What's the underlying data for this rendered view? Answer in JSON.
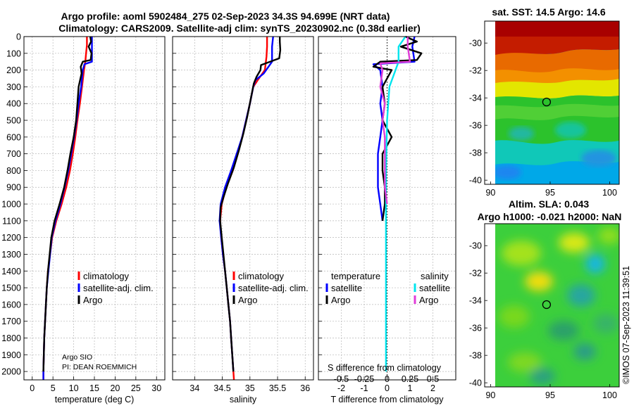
{
  "titles": {
    "line1": "Argo profile: aoml 5902484_275 02-Sep-2023 34.3S 94.699E (NRT data)",
    "line2": "Climatology: CARS2009. Satellite-adj clim: synTS_20230902.nc (0.38d earlier)"
  },
  "credit": {
    "institution": "Argo SIO",
    "pi": "PI: DEAN ROEMMICH",
    "stamp": "©IMOS 07-Sep-2023 11:39:51"
  },
  "colors": {
    "climatology": "#ff0000",
    "satellite": "#0000ff",
    "argo": "#000000",
    "temp_satellite": "#0000ff",
    "sal_satellite": "#00e5ee",
    "sal_argo": "#e23cd8",
    "grid": "#b8b8b8"
  },
  "legends": {
    "temperature": [
      "climatology",
      "satellite-adj. clim.",
      "Argo"
    ],
    "salinity": [
      "climatology",
      "satellite-adj. clim.",
      "Argo"
    ],
    "difference": {
      "temp_header": "temperature",
      "sal_header": "salinity",
      "temp_items": [
        "satellite",
        "Argo"
      ],
      "sal_items": [
        "satellite",
        "Argo"
      ]
    }
  },
  "chart_data": [
    {
      "id": "temperature-profile",
      "type": "line",
      "xlabel": "temperature (deg C)",
      "ylabel": "",
      "xlim": [
        -2,
        32
      ],
      "ylim": [
        2050,
        0
      ],
      "xticks": [
        0,
        5,
        10,
        15,
        20,
        25,
        30
      ],
      "yticks": [
        0,
        100,
        200,
        300,
        400,
        500,
        600,
        700,
        800,
        900,
        1000,
        1100,
        1200,
        1300,
        1400,
        1500,
        1600,
        1700,
        1800,
        1900,
        2000
      ],
      "series": [
        {
          "name": "climatology",
          "color": "#ff0000",
          "width": 2.4,
          "points": [
            [
              13.2,
              0
            ],
            [
              13.2,
              50
            ],
            [
              13.0,
              100
            ],
            [
              12.8,
              150
            ],
            [
              12.5,
              200
            ],
            [
              12.0,
              300
            ],
            [
              11.5,
              400
            ],
            [
              10.9,
              500
            ],
            [
              10.4,
              600
            ],
            [
              9.8,
              700
            ],
            [
              9.1,
              800
            ],
            [
              8.2,
              900
            ],
            [
              7.1,
              1000
            ],
            [
              5.8,
              1100
            ],
            [
              4.8,
              1200
            ],
            [
              4.3,
              1300
            ],
            [
              3.8,
              1400
            ],
            [
              3.5,
              1500
            ],
            [
              3.3,
              1600
            ],
            [
              3.1,
              1700
            ],
            [
              2.9,
              1800
            ],
            [
              2.8,
              1900
            ],
            [
              2.7,
              2000
            ],
            [
              2.7,
              2050
            ]
          ]
        },
        {
          "name": "satellite-adj. clim.",
          "color": "#0000ff",
          "width": 2.4,
          "points": [
            [
              14.4,
              0
            ],
            [
              14.4,
              60
            ],
            [
              14.4,
              150
            ],
            [
              12.6,
              165
            ],
            [
              12.2,
              200
            ],
            [
              11.8,
              300
            ],
            [
              11.2,
              400
            ],
            [
              10.7,
              500
            ],
            [
              10.1,
              600
            ],
            [
              9.4,
              700
            ],
            [
              8.7,
              800
            ],
            [
              7.8,
              900
            ],
            [
              6.8,
              1000
            ],
            [
              5.6,
              1100
            ],
            [
              4.7,
              1200
            ],
            [
              4.3,
              1300
            ],
            [
              3.9,
              1400
            ],
            [
              3.5,
              1500
            ],
            [
              3.3,
              1600
            ],
            [
              3.1,
              1700
            ],
            [
              2.9,
              1800
            ],
            [
              2.8,
              1900
            ],
            [
              2.7,
              2000
            ],
            [
              2.7,
              2050
            ]
          ]
        },
        {
          "name": "Argo",
          "color": "#000000",
          "width": 2.4,
          "points": [
            [
              14.0,
              0
            ],
            [
              14.2,
              30
            ],
            [
              13.6,
              60
            ],
            [
              14.3,
              100
            ],
            [
              14.1,
              140
            ],
            [
              12.2,
              150
            ],
            [
              11.7,
              180
            ],
            [
              11.9,
              220
            ],
            [
              11.2,
              300
            ],
            [
              10.9,
              400
            ],
            [
              10.6,
              500
            ],
            [
              10.0,
              600
            ],
            [
              9.2,
              700
            ],
            [
              8.5,
              800
            ],
            [
              7.7,
              900
            ],
            [
              6.6,
              1000
            ],
            [
              5.4,
              1100
            ],
            [
              4.6,
              1200
            ],
            [
              4.2,
              1300
            ],
            [
              3.8,
              1400
            ],
            [
              3.5,
              1500
            ],
            [
              3.3,
              1600
            ],
            [
              3.1,
              1700
            ],
            [
              2.9,
              1800
            ],
            [
              2.8,
              1900
            ],
            [
              2.7,
              2000
            ]
          ]
        }
      ],
      "legend_position": "lower-center"
    },
    {
      "id": "salinity-profile",
      "type": "line",
      "xlabel": "salinity",
      "ylabel": "",
      "xlim": [
        33.6,
        36.15
      ],
      "ylim": [
        2050,
        0
      ],
      "xticks": [
        34,
        34.5,
        35,
        35.5,
        36
      ],
      "yticks": [
        0,
        100,
        200,
        300,
        400,
        500,
        600,
        700,
        800,
        900,
        1000,
        1100,
        1200,
        1300,
        1400,
        1500,
        1600,
        1700,
        1800,
        1900,
        2000
      ],
      "series": [
        {
          "name": "climatology",
          "color": "#ff0000",
          "width": 2.4,
          "points": [
            [
              35.31,
              0
            ],
            [
              35.31,
              60
            ],
            [
              35.3,
              120
            ],
            [
              35.27,
              200
            ],
            [
              35.14,
              260
            ],
            [
              35.06,
              300
            ],
            [
              35.0,
              400
            ],
            [
              34.93,
              500
            ],
            [
              34.86,
              600
            ],
            [
              34.78,
              700
            ],
            [
              34.69,
              800
            ],
            [
              34.57,
              900
            ],
            [
              34.49,
              1000
            ],
            [
              34.46,
              1100
            ],
            [
              34.48,
              1200
            ],
            [
              34.51,
              1300
            ],
            [
              34.55,
              1400
            ],
            [
              34.58,
              1500
            ],
            [
              34.61,
              1600
            ],
            [
              34.64,
              1700
            ],
            [
              34.66,
              1800
            ],
            [
              34.68,
              1900
            ],
            [
              34.7,
              2000
            ],
            [
              34.71,
              2050
            ]
          ]
        },
        {
          "name": "satellite-adj. clim.",
          "color": "#0000ff",
          "width": 2.4,
          "points": [
            [
              35.42,
              0
            ],
            [
              35.4,
              60
            ],
            [
              35.4,
              150
            ],
            [
              35.25,
              220
            ],
            [
              35.1,
              260
            ],
            [
              35.06,
              300
            ],
            [
              35.0,
              400
            ],
            [
              34.93,
              500
            ],
            [
              34.86,
              600
            ],
            [
              34.76,
              700
            ],
            [
              34.66,
              800
            ],
            [
              34.55,
              900
            ],
            [
              34.47,
              1000
            ],
            [
              34.45,
              1100
            ],
            [
              34.48,
              1200
            ],
            [
              34.51,
              1300
            ],
            [
              34.55,
              1400
            ],
            [
              34.58,
              1500
            ],
            [
              34.61,
              1600
            ],
            [
              34.64,
              1700
            ],
            [
              34.66,
              1800
            ],
            [
              34.68,
              1900
            ],
            [
              34.7,
              2000
            ]
          ]
        },
        {
          "name": "Argo",
          "color": "#000000",
          "width": 2.4,
          "points": [
            [
              35.54,
              0
            ],
            [
              35.54,
              30
            ],
            [
              35.55,
              80
            ],
            [
              35.53,
              130
            ],
            [
              35.2,
              170
            ],
            [
              35.19,
              200
            ],
            [
              35.12,
              240
            ],
            [
              35.07,
              280
            ],
            [
              35.01,
              380
            ],
            [
              34.95,
              480
            ],
            [
              34.88,
              580
            ],
            [
              34.8,
              680
            ],
            [
              34.71,
              780
            ],
            [
              34.6,
              880
            ],
            [
              34.52,
              960
            ],
            [
              34.47,
              1020
            ],
            [
              34.46,
              1100
            ],
            [
              34.49,
              1200
            ],
            [
              34.52,
              1300
            ],
            [
              34.55,
              1400
            ],
            [
              34.58,
              1500
            ],
            [
              34.61,
              1600
            ],
            [
              34.64,
              1700
            ],
            [
              34.66,
              1800
            ],
            [
              34.68,
              1900
            ],
            [
              34.7,
              2000
            ]
          ]
        }
      ],
      "legend_position": "lower-center"
    },
    {
      "id": "difference-profile",
      "type": "line",
      "xlabel": "T difference from climatology",
      "xlabel_top": "S difference from climatology",
      "xlim": [
        -3.0,
        3.0
      ],
      "ylim": [
        2050,
        0
      ],
      "xticks": [
        -2,
        -1,
        0,
        1,
        2
      ],
      "top_ticks": [
        {
          "label": "-0.5",
          "value": -2.0
        },
        {
          "label": "-0.25",
          "value": -1.0
        },
        {
          "label": "0",
          "value": 0
        },
        {
          "label": "0.25",
          "value": 1.0
        },
        {
          "label": "0.5",
          "value": 2.0
        }
      ],
      "yticks": [
        0,
        100,
        200,
        300,
        400,
        500,
        600,
        700,
        800,
        900,
        1000,
        1100,
        1200,
        1300,
        1400,
        1500,
        1600,
        1700,
        1800,
        1900,
        2000
      ],
      "series": [
        {
          "name": "temperature satellite",
          "color": "#0000ff",
          "width": 2.4,
          "points": [
            [
              1.2,
              0
            ],
            [
              1.1,
              60
            ],
            [
              1.2,
              150
            ],
            [
              -0.6,
              165
            ],
            [
              -0.3,
              200
            ],
            [
              -0.2,
              300
            ],
            [
              -0.3,
              400
            ],
            [
              -0.2,
              500
            ],
            [
              -0.3,
              600
            ],
            [
              -0.4,
              700
            ],
            [
              -0.4,
              800
            ],
            [
              -0.4,
              900
            ],
            [
              -0.3,
              1000
            ],
            [
              -0.2,
              1100
            ]
          ]
        },
        {
          "name": "temperature Argo",
          "color": "#000000",
          "width": 2.4,
          "points": [
            [
              0.8,
              0
            ],
            [
              1.3,
              30
            ],
            [
              0.6,
              60
            ],
            [
              1.5,
              100
            ],
            [
              1.3,
              140
            ],
            [
              -0.3,
              150
            ],
            [
              -0.6,
              180
            ],
            [
              0.2,
              200
            ],
            [
              -0.2,
              300
            ],
            [
              -0.1,
              400
            ],
            [
              -0.2,
              500
            ],
            [
              0.2,
              600
            ],
            [
              -0.2,
              700
            ],
            [
              -0.2,
              800
            ],
            [
              -0.1,
              900
            ],
            [
              -0.1,
              1000
            ],
            [
              -0.2,
              1100
            ]
          ]
        },
        {
          "name": "salinity satellite",
          "color": "#00e5ee",
          "width": 2.4,
          "points": [
            [
              0.8,
              0
            ],
            [
              0.5,
              60
            ],
            [
              0.5,
              150
            ],
            [
              0.1,
              300
            ],
            [
              0.0,
              500
            ],
            [
              -0.05,
              800
            ],
            [
              -0.05,
              1100
            ],
            [
              -0.05,
              1300
            ],
            [
              -0.05,
              1600
            ],
            [
              -0.05,
              2000
            ]
          ]
        },
        {
          "name": "salinity Argo",
          "color": "#e23cd8",
          "width": 2.4,
          "points": [
            [
              0.9,
              0
            ],
            [
              0.9,
              60
            ],
            [
              1.0,
              150
            ],
            [
              -0.3,
              160
            ],
            [
              -0.2,
              200
            ],
            [
              -0.3,
              300
            ],
            [
              -0.1,
              400
            ],
            [
              -0.2,
              500
            ],
            [
              -0.1,
              600
            ],
            [
              -0.1,
              700
            ],
            [
              -0.1,
              800
            ],
            [
              -0.1,
              900
            ],
            [
              0.0,
              1000
            ]
          ]
        }
      ],
      "legend_position": "lower-center"
    },
    {
      "id": "sst-map",
      "type": "heatmap",
      "title": "sat. SST: 14.5 Argo: 14.6",
      "xticks": [
        90,
        95,
        100
      ],
      "yticks": [
        -30,
        -32,
        -34,
        -36,
        -38,
        -40
      ],
      "xlim": [
        89.5,
        100.8
      ],
      "ylim": [
        -40.3,
        -28.4
      ],
      "argo_position": [
        94.7,
        -34.3
      ],
      "colormap": "jet"
    },
    {
      "id": "sla-map",
      "type": "heatmap",
      "title_line1": "Altim. SLA: 0.043",
      "title_line2": "Argo h1000: -0.021 h2000: NaN",
      "xticks": [
        90,
        95,
        100
      ],
      "yticks": [
        -30,
        -32,
        -34,
        -36,
        -38,
        -40
      ],
      "xlim": [
        89.5,
        100.8
      ],
      "ylim": [
        -40.3,
        -28.4
      ],
      "argo_position": [
        94.7,
        -34.3
      ],
      "colormap": "jet"
    }
  ]
}
